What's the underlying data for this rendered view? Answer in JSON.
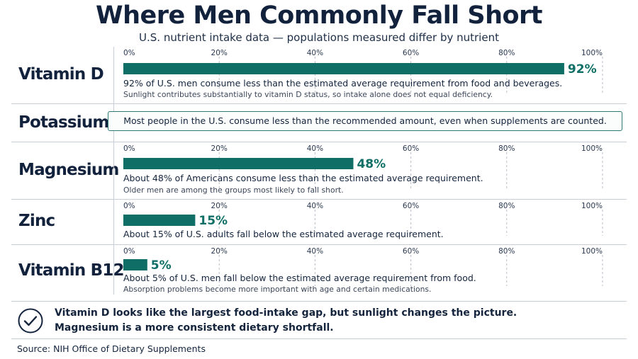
{
  "title": "Where Men Commonly Fall Short",
  "subtitle": "U.S. nutrient intake data — populations measured differ by nutrient",
  "chart_data": {
    "type": "bar",
    "orientation": "horizontal",
    "xlim": [
      0,
      100
    ],
    "ticks": [
      "0%",
      "20%",
      "40%",
      "60%",
      "80%",
      "100%"
    ],
    "tick_values": [
      0,
      20,
      40,
      60,
      80,
      100
    ],
    "bar_color": "#0f6f66",
    "rows": [
      {
        "label": "Vitamin D",
        "value": 92,
        "value_label": "92%",
        "note": "92% of U.S. men consume less than the estimated average requirement from food and beverages.",
        "sub": "Sunlight contributes substantially to vitamin D status, so intake alone does not equal deficiency."
      },
      {
        "label": "Potassium",
        "value": null,
        "callout": "Most people in the U.S. consume less than the recommended amount, even when supplements are counted."
      },
      {
        "label": "Magnesium",
        "value": 48,
        "value_label": "48%",
        "note": "About 48% of Americans consume less than the estimated average requirement.",
        "sub": "Older men are among the groups most likely to fall short."
      },
      {
        "label": "Zinc",
        "value": 15,
        "value_label": "15%",
        "note": "About 15% of U.S. adults fall below the estimated average requirement.",
        "sub": ""
      },
      {
        "label": "Vitamin B12",
        "value": 5,
        "value_label": "5%",
        "note": "About 5% of U.S. men fall below the estimated average requirement from food.",
        "sub": "Absorption problems become more important with age and certain medications."
      }
    ]
  },
  "takeaway": {
    "icon": "check-circle-icon",
    "line1": "Vitamin D looks like the largest food-intake gap, but sunlight changes the picture.",
    "line2": "Magnesium is a more consistent dietary shortfall."
  },
  "source": "Source: NIH Office of Dietary Supplements",
  "colors": {
    "accent": "#0f6f66",
    "text": "#14243d",
    "rule": "#c9ced6"
  }
}
